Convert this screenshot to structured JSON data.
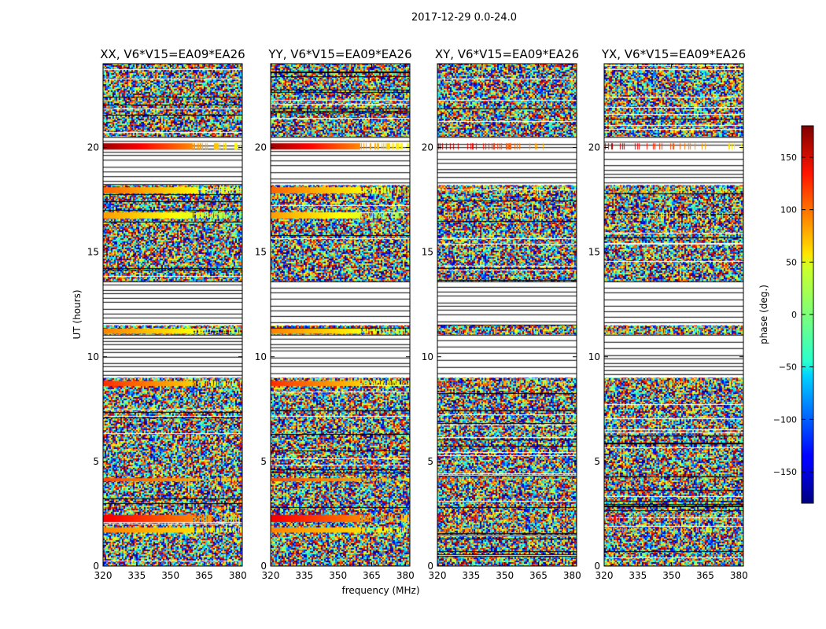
{
  "figure_title": "2017-12-29 0.0-24.0",
  "xlabel": "frequency (MHz)",
  "ylabel": "UT (hours)",
  "chart_data": {
    "type": "heatmap",
    "title": "2017-12-29 0.0-24.0",
    "xlabel": "frequency (MHz)",
    "ylabel": "UT (hours)",
    "xlim": [
      320,
      382
    ],
    "ylim": [
      0,
      24
    ],
    "xticks": [
      320,
      335,
      350,
      365,
      380
    ],
    "yticks": [
      0,
      5,
      10,
      15,
      20
    ],
    "panels": [
      {
        "title": "XX, V6*V15=EA09*EA26",
        "pol": "XX"
      },
      {
        "title": "YY, V6*V15=EA09*EA26",
        "pol": "YY"
      },
      {
        "title": "XY, V6*V15=EA09*EA26",
        "pol": "XY"
      },
      {
        "title": "YX, V6*V15=EA09*EA26",
        "pol": "YX"
      }
    ],
    "flagged_ut_ranges": [
      [
        13.6,
        11.5
      ],
      [
        11.05,
        9.0
      ],
      [
        20.5,
        18.2
      ]
    ],
    "coherent_bands": [
      {
        "ut": [
          19.9,
          20.2
        ],
        "phase_start": 170,
        "phase_end": 40
      },
      {
        "ut": [
          17.8,
          18.1
        ],
        "phase_start": 100,
        "phase_end": 20
      },
      {
        "ut": [
          16.6,
          16.9
        ],
        "phase_start": 80,
        "phase_end": 10
      },
      {
        "ut": [
          11.1,
          11.35
        ],
        "phase_start": 90,
        "phase_end": 20
      },
      {
        "ut": [
          8.6,
          8.85
        ],
        "phase_start": 120,
        "phase_end": 30
      },
      {
        "ut": [
          4.05,
          4.2
        ],
        "phase_start": 110,
        "phase_end": 60
      },
      {
        "ut": [
          2.1,
          2.45
        ],
        "phase_start": 140,
        "phase_end": 60
      },
      {
        "ut": [
          1.6,
          1.85
        ],
        "phase_start": 90,
        "phase_end": 40
      }
    ],
    "colorbar": {
      "label": "phase (deg.)",
      "range": [
        -180,
        180
      ],
      "ticks": [
        150,
        100,
        50,
        0,
        -50,
        -100,
        -150
      ],
      "tick_labels": [
        "150",
        "100",
        "50",
        "0",
        "−50",
        "−100",
        "−150"
      ],
      "colormap": "jet"
    }
  }
}
